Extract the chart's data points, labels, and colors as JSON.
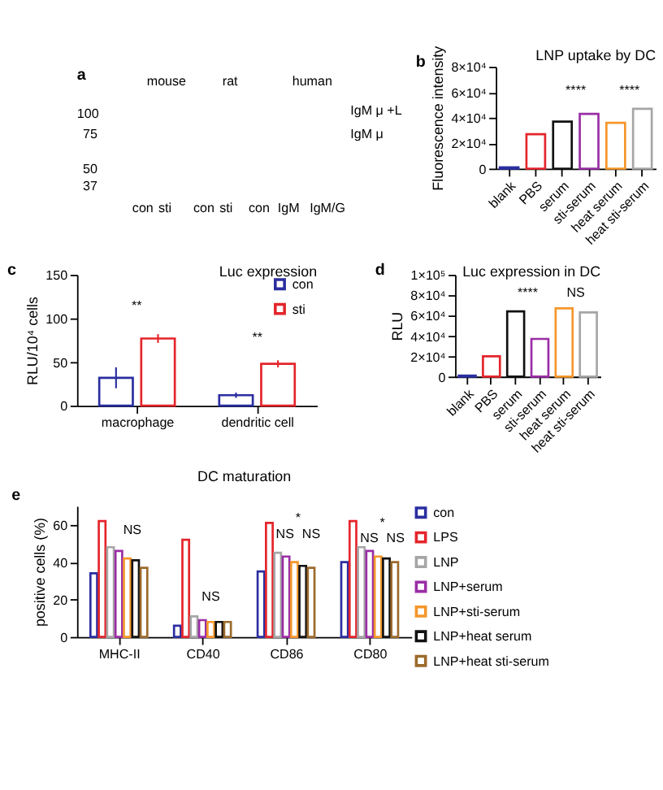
{
  "chart_data": [
    {
      "type": "other",
      "annotations": [
        "a",
        "mouse",
        "rat",
        "human",
        "100",
        "75",
        "50",
        "37",
        "con",
        "sti",
        "con",
        "sti",
        "con",
        "IgM",
        "IgM/G",
        "IgM μ +L",
        "IgM μ"
      ]
    },
    {
      "type": "bar",
      "title": "LNP uptake by DC",
      "ylabel": "Fluorescence intensity",
      "categories": [
        "blank",
        "PBS",
        "serum",
        "sti-serum",
        "heat serum",
        "heat sti-serum"
      ],
      "values": [
        1000,
        27000,
        37000,
        43000,
        36000,
        47000
      ],
      "colors": [
        "#2b2ea0",
        "#e4252b",
        "#111111",
        "#9a2ea6",
        "#f5962a",
        "#a6a6a6"
      ],
      "ylim": [
        0,
        80000
      ],
      "yticks": [
        0,
        {
          "value": 20000,
          "label": "2×10⁴"
        },
        {
          "value": 40000,
          "label": "4×10⁴"
        },
        {
          "value": 60000,
          "label": "6×10⁴"
        },
        {
          "value": 80000,
          "label": "8×10⁴"
        }
      ],
      "annotations": [
        "b",
        "****",
        "****"
      ]
    },
    {
      "type": "bar",
      "title": "Luc expression",
      "ylabel": "RLU/10⁴ cells",
      "categories": [
        "macrophage",
        "dendritic cell"
      ],
      "series": [
        {
          "name": "con",
          "color": "#2b2ea0",
          "values": [
            32,
            12
          ],
          "errors": [
            12,
            3
          ]
        },
        {
          "name": "sti",
          "color": "#e4252b",
          "values": [
            77,
            48
          ],
          "errors": [
            5,
            4
          ]
        }
      ],
      "ylim": [
        0,
        150
      ],
      "yticks": [
        0,
        50,
        100,
        150
      ],
      "legend": "top right",
      "annotations": [
        "c",
        "**",
        "**"
      ]
    },
    {
      "type": "bar",
      "title": "Luc expression in DC",
      "ylabel": "RLU",
      "categories": [
        "blank",
        "PBS",
        "serum",
        "sti-serum",
        "heat serum",
        "heat sti-serum"
      ],
      "values": [
        1000,
        20000,
        64000,
        37000,
        67000,
        63000
      ],
      "colors": [
        "#2b2ea0",
        "#e4252b",
        "#111111",
        "#9a2ea6",
        "#f5962a",
        "#a6a6a6"
      ],
      "ylim": [
        0,
        100000
      ],
      "yticks": [
        0,
        {
          "value": 20000,
          "label": "2×10⁴"
        },
        {
          "value": 40000,
          "label": "4×10⁴"
        },
        {
          "value": 60000,
          "label": "6×10⁴"
        },
        {
          "value": 80000,
          "label": "8×10⁴"
        },
        {
          "value": 100000,
          "label": "1×10⁵"
        }
      ],
      "annotations": [
        "d",
        "****",
        "NS"
      ]
    },
    {
      "type": "bar",
      "title": "DC maturation",
      "ylabel": "positive cells (%)",
      "categories": [
        "MHC-II",
        "CD40",
        "CD86",
        "CD80"
      ],
      "series": [
        {
          "name": "con",
          "color": "#2b2ea0",
          "values": [
            34,
            6,
            35,
            40
          ]
        },
        {
          "name": "LPS",
          "color": "#e4252b",
          "values": [
            62,
            52,
            61,
            62
          ]
        },
        {
          "name": "LNP",
          "color": "#a6a6a6",
          "values": [
            48,
            11,
            45,
            48
          ]
        },
        {
          "name": "LNP+serum",
          "color": "#9a2ea6",
          "values": [
            46,
            9,
            43,
            46
          ]
        },
        {
          "name": "LNP+sti-serum",
          "color": "#f5962a",
          "values": [
            42,
            8,
            40,
            43
          ]
        },
        {
          "name": "LNP+heat serum",
          "color": "#111111",
          "values": [
            41,
            8,
            38,
            42
          ]
        },
        {
          "name": "LNP+heat sti-serum",
          "color": "#9b6a2c",
          "values": [
            37,
            8,
            37,
            40
          ]
        }
      ],
      "ylim": [
        0,
        70
      ],
      "yticks": [
        0,
        20,
        40,
        60
      ],
      "legend": "right",
      "annotations": [
        "e",
        "NS",
        "NS",
        "*",
        "NS",
        "NS",
        "*",
        "NS",
        "NS"
      ]
    }
  ]
}
